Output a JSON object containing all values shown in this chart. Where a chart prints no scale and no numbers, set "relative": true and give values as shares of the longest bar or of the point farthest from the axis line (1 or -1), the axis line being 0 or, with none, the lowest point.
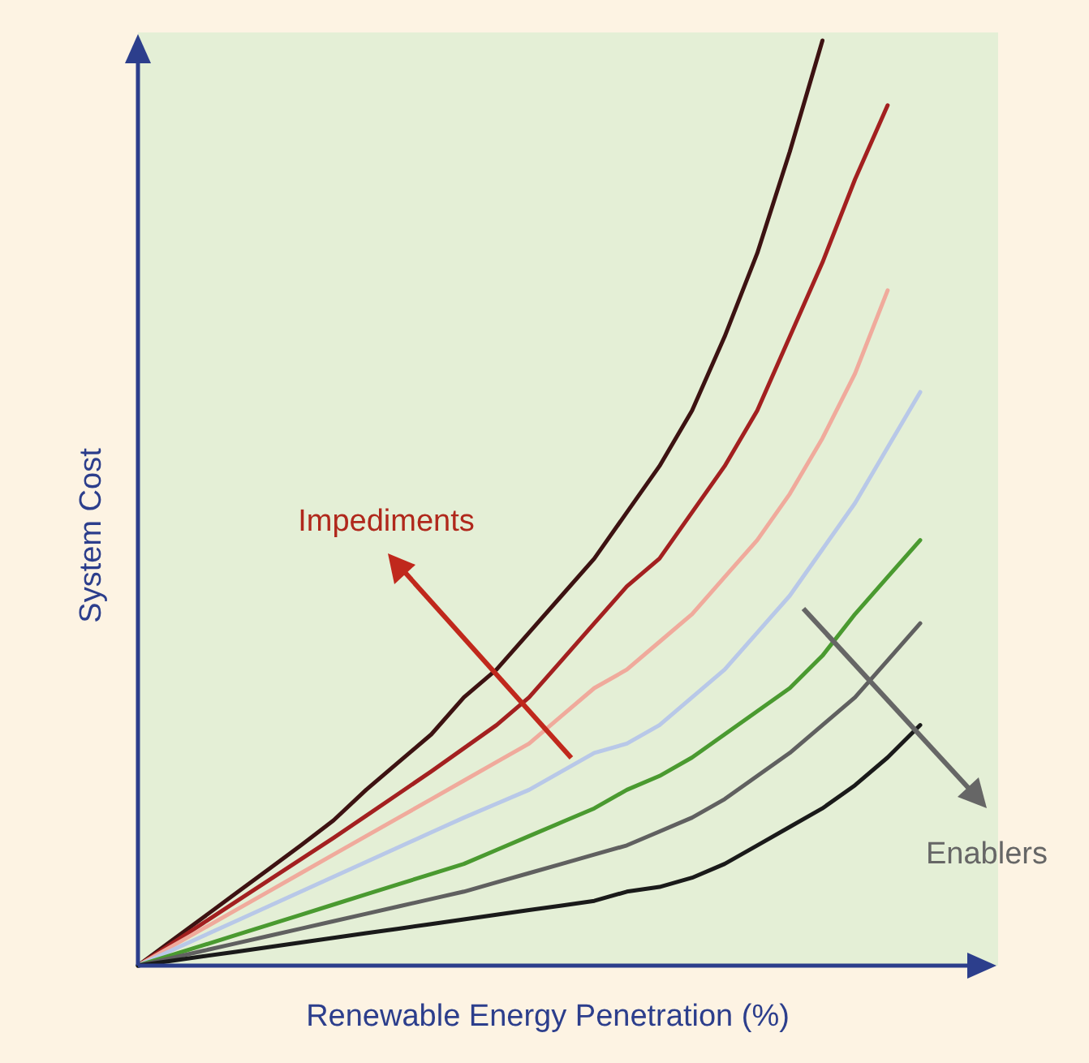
{
  "chart_data": {
    "type": "line",
    "relative": true,
    "xlabel": "Renewable Energy Penetration (%)",
    "ylabel": "System Cost",
    "marker": "none",
    "line_style": "solid",
    "categories": [
      null,
      null,
      null,
      null,
      null,
      null,
      null,
      null,
      null,
      null,
      null,
      null,
      null,
      null,
      null,
      null,
      null,
      null,
      null,
      null,
      null,
      null,
      null,
      null,
      null
    ],
    "annotations": [
      "Impediments",
      "Enablers"
    ],
    "series": [
      {
        "color": "#3d1212",
        "values": [
          0,
          0.026,
          0.052,
          0.078,
          0.104,
          0.13,
          0.157,
          0.19,
          0.22,
          0.25,
          0.29,
          0.32,
          0.36,
          0.4,
          0.44,
          0.49,
          0.54,
          0.6,
          0.68,
          0.77,
          0.88,
          1.0,
          null,
          null,
          null
        ]
      },
      {
        "color": "#a32020",
        "values": [
          0,
          0.023,
          0.046,
          0.069,
          0.092,
          0.115,
          0.138,
          0.162,
          0.186,
          0.21,
          0.235,
          0.26,
          0.29,
          0.33,
          0.37,
          0.41,
          0.44,
          0.49,
          0.54,
          0.6,
          0.68,
          0.76,
          0.85,
          0.93,
          null
        ]
      },
      {
        "color": "#f0aa9c",
        "values": [
          0,
          0.02,
          0.04,
          0.06,
          0.08,
          0.1,
          0.12,
          0.14,
          0.16,
          0.18,
          0.2,
          0.22,
          0.24,
          0.27,
          0.3,
          0.32,
          0.35,
          0.38,
          0.42,
          0.46,
          0.51,
          0.57,
          0.64,
          0.73,
          null
        ]
      },
      {
        "color": "#b8c8e8",
        "values": [
          0,
          0.016,
          0.032,
          0.048,
          0.064,
          0.08,
          0.096,
          0.112,
          0.128,
          0.144,
          0.16,
          0.175,
          0.19,
          0.21,
          0.23,
          0.24,
          0.26,
          0.29,
          0.32,
          0.36,
          0.4,
          0.45,
          0.5,
          0.56,
          0.62
        ]
      },
      {
        "color": "#4a9a30",
        "values": [
          0,
          0.011,
          0.022,
          0.033,
          0.044,
          0.055,
          0.066,
          0.077,
          0.088,
          0.099,
          0.11,
          0.125,
          0.14,
          0.155,
          0.17,
          0.19,
          0.205,
          0.225,
          0.25,
          0.275,
          0.3,
          0.335,
          0.38,
          0.42,
          0.46
        ]
      },
      {
        "color": "#606060",
        "values": [
          0,
          0.008,
          0.016,
          0.024,
          0.032,
          0.04,
          0.048,
          0.056,
          0.064,
          0.072,
          0.08,
          0.09,
          0.1,
          0.11,
          0.12,
          0.13,
          0.145,
          0.16,
          0.18,
          0.205,
          0.23,
          0.26,
          0.29,
          0.33,
          0.37
        ]
      },
      {
        "color": "#1a1a1a",
        "values": [
          0,
          0.005,
          0.01,
          0.015,
          0.02,
          0.025,
          0.03,
          0.035,
          0.04,
          0.045,
          0.05,
          0.055,
          0.06,
          0.065,
          0.07,
          0.08,
          0.085,
          0.095,
          0.11,
          0.13,
          0.15,
          0.17,
          0.195,
          0.225,
          0.26
        ]
      }
    ]
  }
}
